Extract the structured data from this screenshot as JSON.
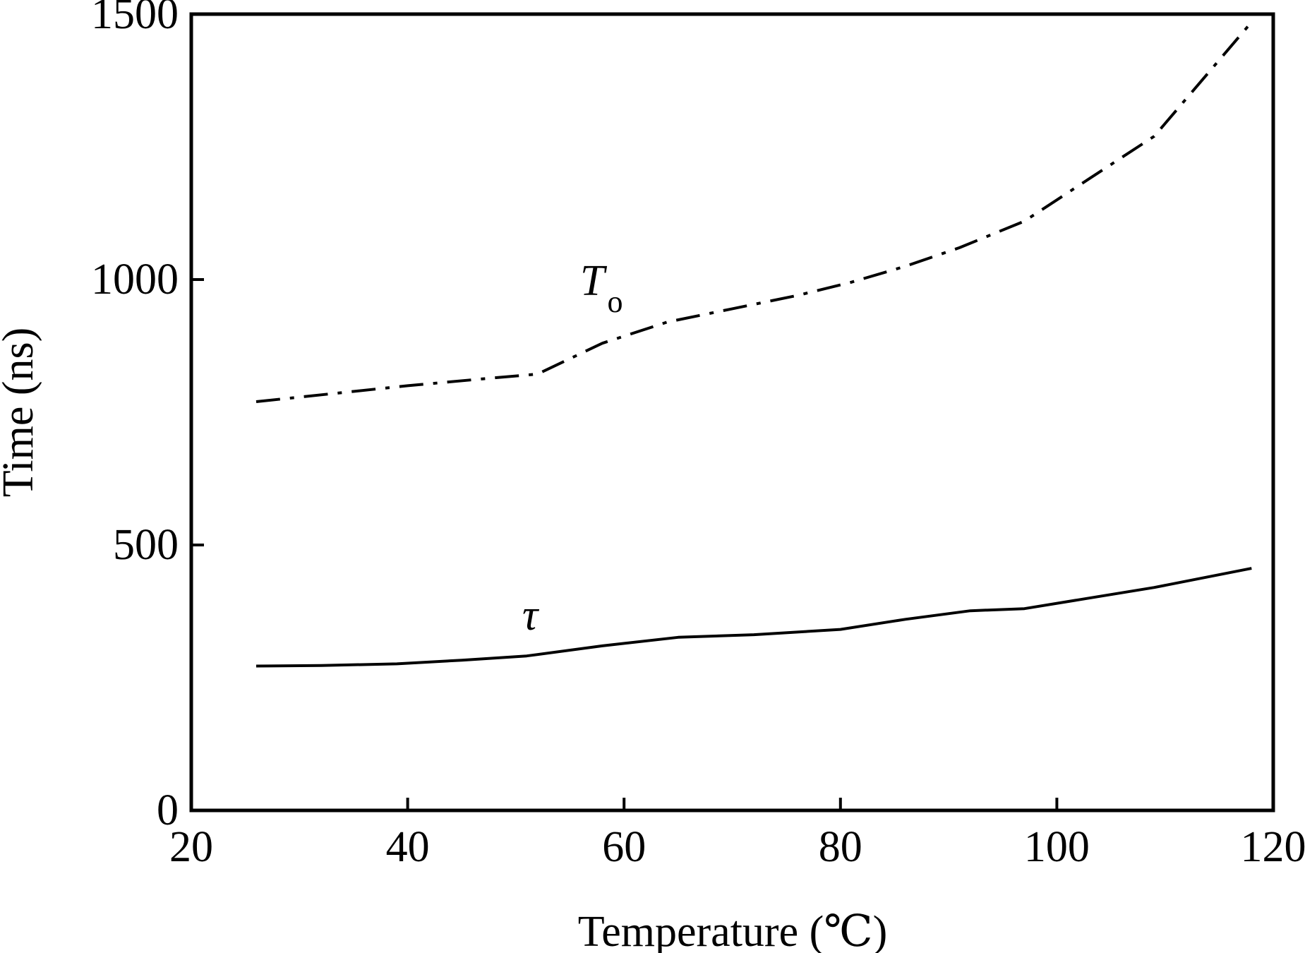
{
  "chart_data": {
    "type": "line",
    "title": "",
    "xlabel": "Temperature (℃)",
    "ylabel": "Time (ns)",
    "xlim": [
      20,
      120
    ],
    "ylim": [
      0,
      1500
    ],
    "xticks": [
      "20",
      "40",
      "60",
      "80",
      "100",
      "120"
    ],
    "yticks": [
      "0",
      "500",
      "1000",
      "1500"
    ],
    "grid": false,
    "series": [
      {
        "name": "To",
        "label_main": "T",
        "label_sub": "o",
        "style": "dash-dot",
        "color": "#000000",
        "x": [
          26,
          33,
          40,
          47,
          52,
          58,
          64,
          70,
          76,
          81,
          86,
          91,
          97,
          103,
          109,
          118
        ],
        "y": [
          770,
          785,
          800,
          813,
          822,
          880,
          920,
          945,
          970,
          995,
          1025,
          1060,
          1110,
          1190,
          1270,
          1485
        ]
      },
      {
        "name": "τ",
        "label_main": "τ",
        "label_sub": "",
        "style": "solid",
        "color": "#000000",
        "x": [
          26,
          32,
          39,
          45,
          51,
          58,
          65,
          72,
          80,
          86,
          92,
          97,
          103,
          109,
          118
        ],
        "y": [
          272,
          273,
          276,
          283,
          291,
          310,
          326,
          331,
          341,
          360,
          376,
          380,
          400,
          420,
          456
        ]
      }
    ]
  }
}
